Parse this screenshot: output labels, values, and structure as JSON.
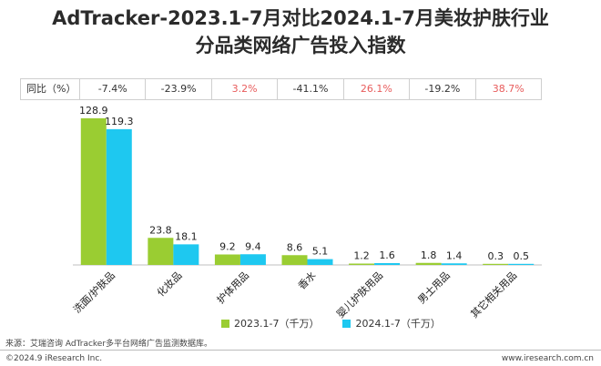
{
  "title_line1": "AdTracker-2023.1-7月对比2024.1-7月美妆护肤行业",
  "title_line2": "分品类网络广告投入指数",
  "yoy_label": "同比（%）",
  "source": "来源：艾瑞咨询 AdTracker多平台网络广告监测数据库。",
  "copyright": "©2024.9 iResearch Inc.",
  "website": "www.iresearch.com.cn",
  "colors": {
    "series1": "#9acd32",
    "series2": "#1ec8f0",
    "positive": "#e85c5c"
  },
  "chart_data": {
    "type": "bar",
    "categories": [
      "洗面/护肤品",
      "化妆品",
      "护体用品",
      "香水",
      "婴儿护肤用品",
      "男士用品",
      "其它相关用品"
    ],
    "series": [
      {
        "name": "2023.1-7（千万）",
        "values": [
          128.9,
          23.8,
          9.2,
          8.6,
          1.2,
          1.8,
          0.3
        ]
      },
      {
        "name": "2024.1-7（千万）",
        "values": [
          119.3,
          18.1,
          9.4,
          5.1,
          1.6,
          1.4,
          0.5
        ]
      }
    ],
    "yoy": [
      "-7.4%",
      "-23.9%",
      "3.2%",
      "-41.1%",
      "26.1%",
      "-19.2%",
      "38.7%"
    ],
    "ylim": [
      0,
      140
    ],
    "legend_position": "bottom"
  }
}
